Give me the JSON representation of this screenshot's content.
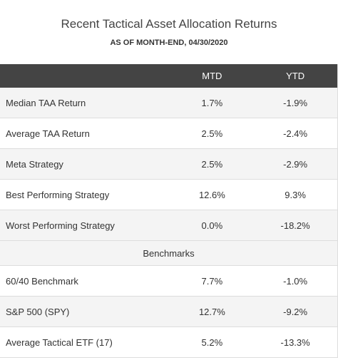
{
  "title": "Recent Tactical Asset Allocation Returns",
  "subtitle": "AS OF MONTH-END, 04/30/2020",
  "table": {
    "headers": {
      "label": "",
      "mtd": "MTD",
      "ytd": "YTD"
    },
    "rows": [
      {
        "label": "Median TAA Return",
        "mtd": "1.7%",
        "ytd": "-1.9%"
      },
      {
        "label": "Average TAA Return",
        "mtd": "2.5%",
        "ytd": "-2.4%"
      },
      {
        "label": "Meta Strategy",
        "mtd": "2.5%",
        "ytd": "-2.9%"
      },
      {
        "label": "Best Performing Strategy",
        "mtd": "12.6%",
        "ytd": "9.3%"
      },
      {
        "label": "Worst Performing Strategy",
        "mtd": "0.0%",
        "ytd": "-18.2%"
      }
    ],
    "section_label": "Benchmarks",
    "benchmark_rows": [
      {
        "label": "60/40 Benchmark",
        "mtd": "7.7%",
        "ytd": "-1.0%"
      },
      {
        "label": "S&P 500 (SPY)",
        "mtd": "12.7%",
        "ytd": "-9.2%"
      },
      {
        "label": "Average Tactical ETF (17)",
        "mtd": "5.2%",
        "ytd": "-13.3%"
      }
    ]
  },
  "colors": {
    "header_bg": "#444444",
    "row_alt_bg": "#f4f4f4",
    "border": "#dddddd"
  }
}
